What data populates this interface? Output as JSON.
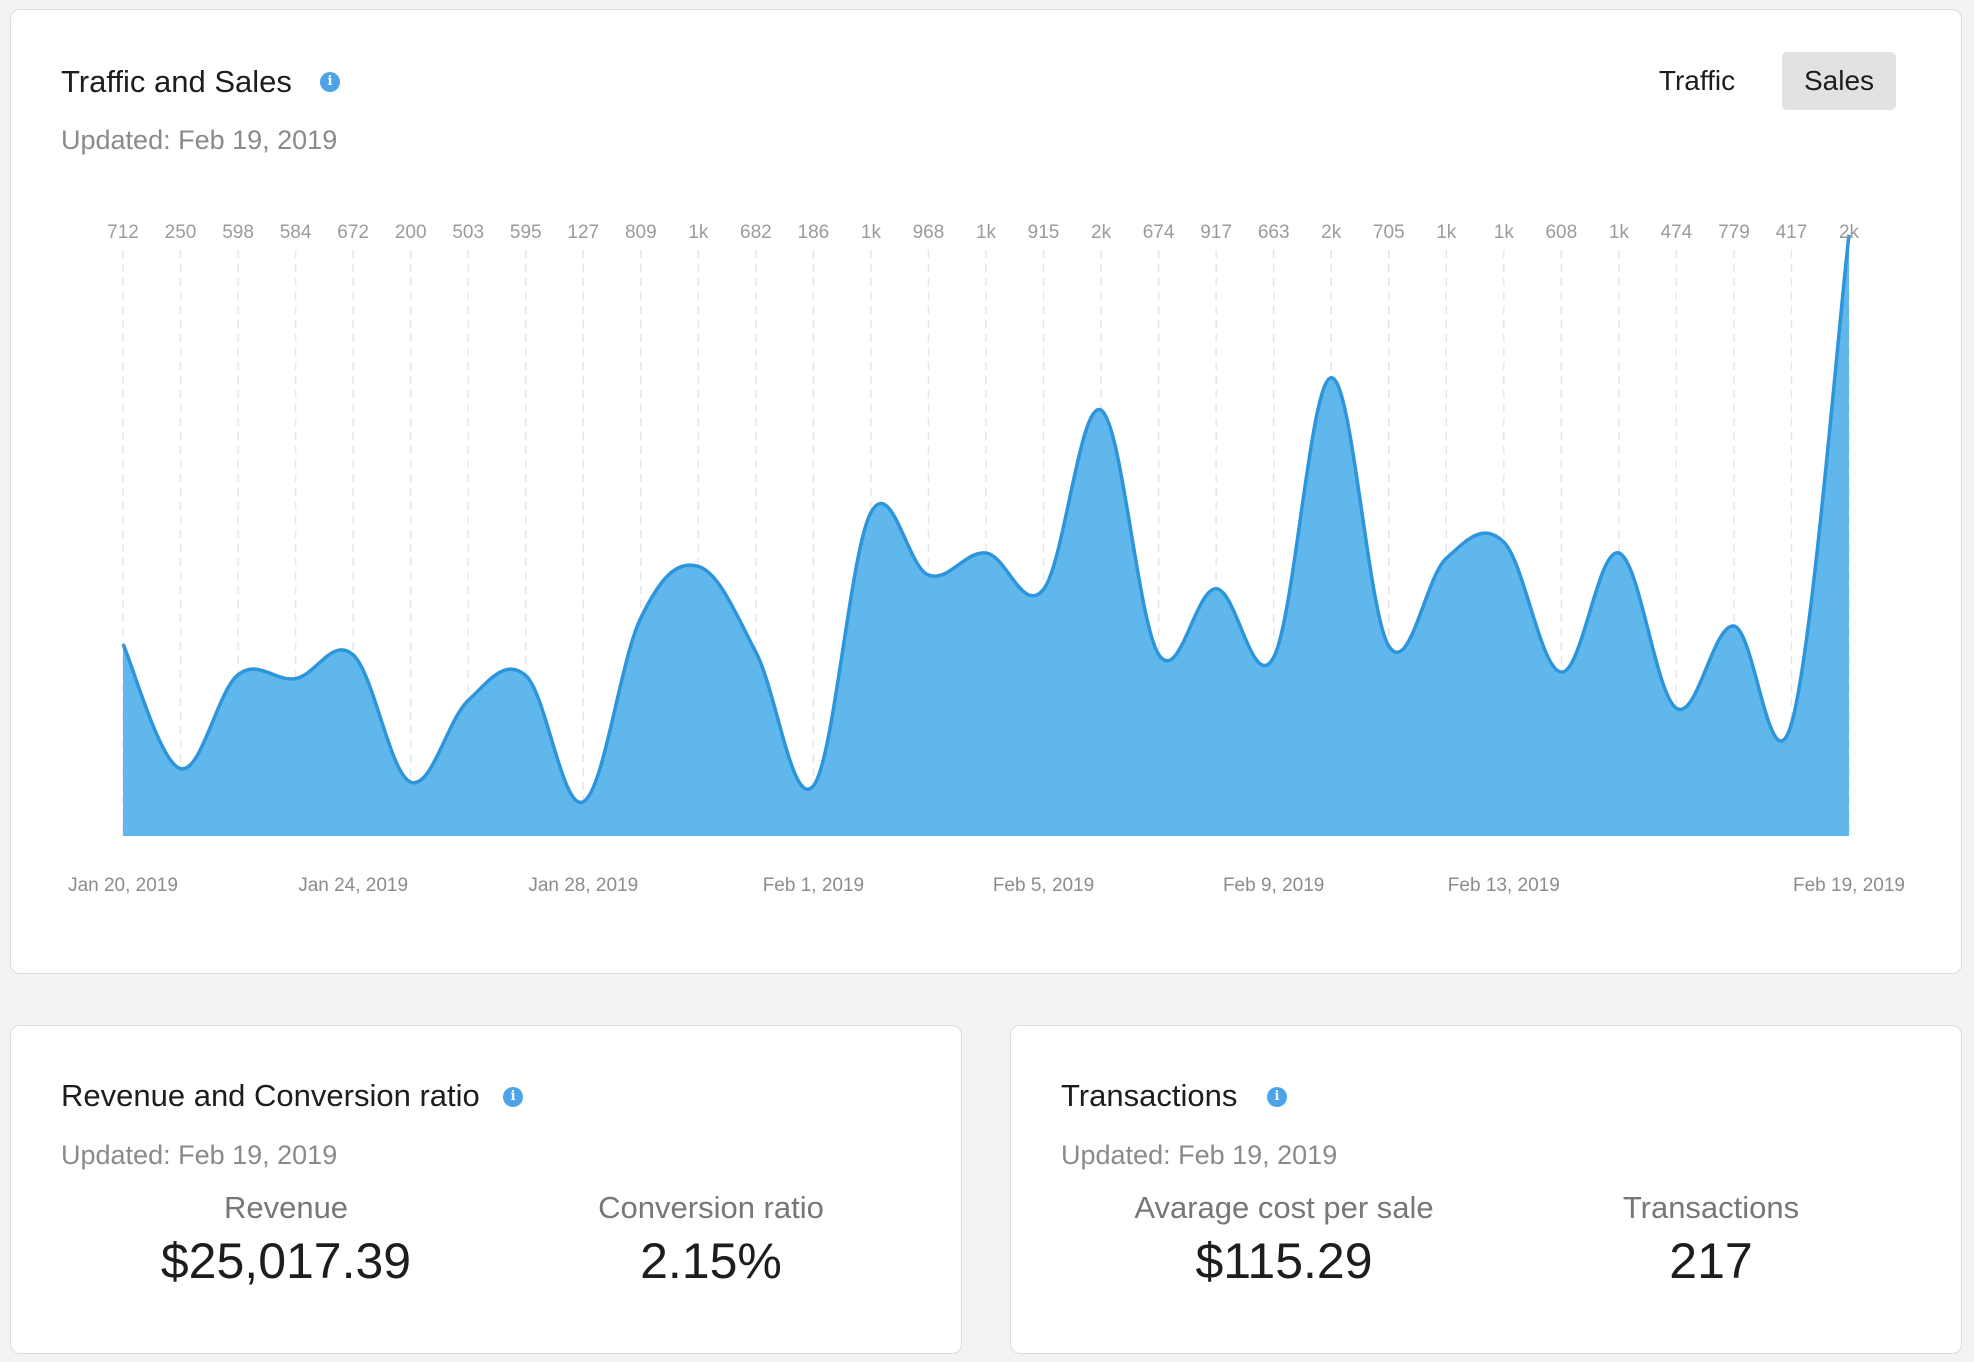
{
  "traffic_sales": {
    "title": "Traffic and Sales",
    "updated": "Updated: Feb 19, 2019",
    "tabs": [
      {
        "label": "Traffic",
        "active": false
      },
      {
        "label": "Sales",
        "active": true
      }
    ]
  },
  "revenue_card": {
    "title": "Revenue and Conversion ratio",
    "updated": "Updated: Feb 19, 2019",
    "metrics": [
      {
        "label": "Revenue",
        "value": "$25,017.39"
      },
      {
        "label": "Conversion ratio",
        "value": "2.15%"
      }
    ]
  },
  "transactions_card": {
    "title": "Transactions",
    "updated": "Updated: Feb 19, 2019",
    "metrics": [
      {
        "label": "Avarage cost per sale",
        "value": "$115.29"
      },
      {
        "label": "Transactions",
        "value": "217"
      }
    ]
  },
  "colors": {
    "fill": "#5fb7eb",
    "line": "#2c95dc",
    "info": "#4da3ea",
    "active_tab": "#e2e2e2"
  },
  "chart_data": {
    "type": "area",
    "x": [
      "Jan 20, 2019",
      "Jan 21, 2019",
      "Jan 22, 2019",
      "Jan 23, 2019",
      "Jan 24, 2019",
      "Jan 25, 2019",
      "Jan 26, 2019",
      "Jan 27, 2019",
      "Jan 28, 2019",
      "Jan 29, 2019",
      "Jan 30, 2019",
      "Jan 31, 2019",
      "Feb 1, 2019",
      "Feb 2, 2019",
      "Feb 3, 2019",
      "Feb 4, 2019",
      "Feb 5, 2019",
      "Feb 6, 2019",
      "Feb 7, 2019",
      "Feb 8, 2019",
      "Feb 9, 2019",
      "Feb 10, 2019",
      "Feb 11, 2019",
      "Feb 12, 2019",
      "Feb 13, 2019",
      "Feb 14, 2019",
      "Feb 15, 2019",
      "Feb 16, 2019",
      "Feb 17, 2019",
      "Feb 18, 2019",
      "Feb 19, 2019"
    ],
    "value_labels": [
      "712",
      "250",
      "598",
      "584",
      "672",
      "200",
      "503",
      "595",
      "127",
      "809",
      "1k",
      "682",
      "186",
      "1k",
      "968",
      "1k",
      "915",
      "2k",
      "674",
      "917",
      "663",
      "2k",
      "705",
      "1k",
      "1k",
      "608",
      "1k",
      "474",
      "779",
      "417",
      "2k"
    ],
    "values": [
      712,
      250,
      598,
      584,
      672,
      200,
      503,
      595,
      127,
      809,
      1000,
      682,
      186,
      1200,
      968,
      1050,
      915,
      1580,
      674,
      917,
      663,
      1700,
      705,
      1030,
      1090,
      608,
      1050,
      474,
      779,
      417,
      2230
    ],
    "x_tick_labels": [
      "Jan 20, 2019",
      "Jan 24, 2019",
      "Jan 28, 2019",
      "Feb 1, 2019",
      "Feb 5, 2019",
      "Feb 9, 2019",
      "Feb 13, 2019",
      "Feb 19, 2019"
    ],
    "x_tick_indices": [
      0,
      4,
      8,
      12,
      16,
      20,
      24,
      30
    ],
    "ylim": [
      0,
      2300
    ],
    "grid": "vertical dashed"
  }
}
